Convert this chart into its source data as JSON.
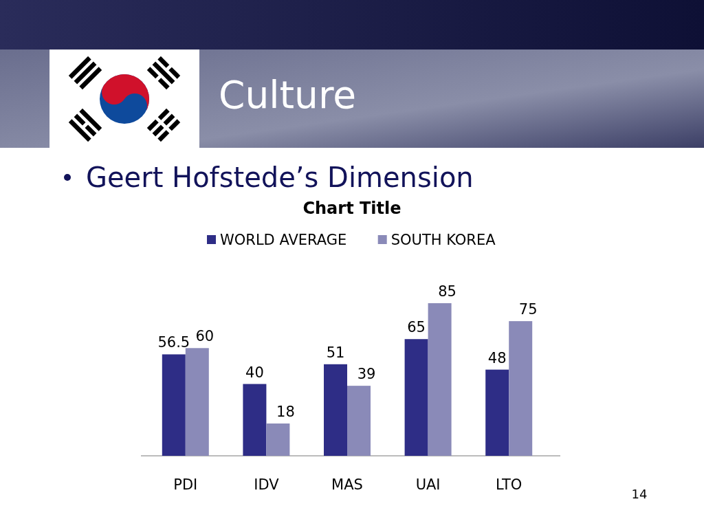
{
  "chart_data": {
    "type": "bar",
    "title": "Culture",
    "subtitle": "Geert Hofstede’s Dimension",
    "annotations": [
      "Chart Title",
      "14"
    ],
    "categories": [
      "PDI",
      "IDV",
      "MAS",
      "UAI",
      "LTO"
    ],
    "series": [
      {
        "name": "WORLD AVERAGE",
        "color": "#2e2d86",
        "values": [
          56.5,
          40,
          51,
          65,
          48
        ]
      },
      {
        "name": "SOUTH KOREA",
        "color": "#8a8ab8",
        "values": [
          60,
          18,
          39,
          85,
          75
        ]
      }
    ],
    "data_labels": true,
    "legend": "top"
  }
}
